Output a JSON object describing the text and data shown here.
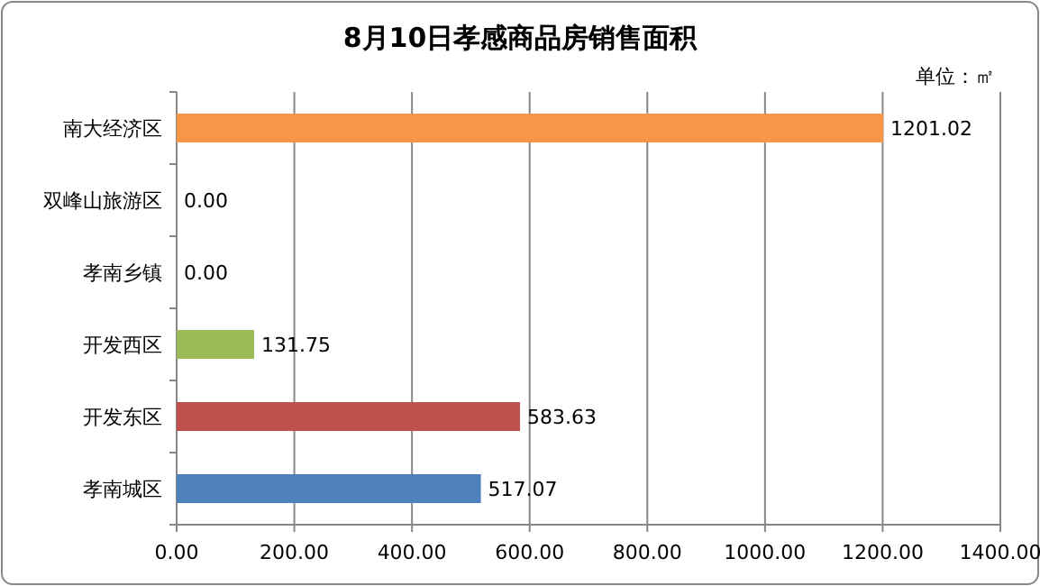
{
  "chart_data": {
    "type": "bar",
    "orientation": "horizontal",
    "title": "8月10日孝感商品房销售面积",
    "annotations": [
      "单位：㎡"
    ],
    "categories": [
      "南大经济区",
      "双峰山旅游区",
      "孝南乡镇",
      "开发西区",
      "开发东区",
      "孝南城区"
    ],
    "values": [
      1201.02,
      0,
      0,
      131.75,
      583.63,
      517.07
    ],
    "colors": [
      "#f79646",
      "#f79646",
      "#f79646",
      "#9bbb59",
      "#c0504d",
      "#4f81bd"
    ],
    "value_labels": [
      "1201.02",
      "0.00",
      "0.00",
      "131.75",
      "583.63",
      "517.07"
    ],
    "xlim": [
      0,
      1400
    ],
    "xticks": [
      {
        "value": 0,
        "label": "0.00"
      },
      {
        "value": 200,
        "label": "200.00"
      },
      {
        "value": 400,
        "label": "400.00"
      },
      {
        "value": 600,
        "label": "600.00"
      },
      {
        "value": 800,
        "label": "800.00"
      },
      {
        "value": 1000,
        "label": "1000.00"
      },
      {
        "value": 1200,
        "label": "1200.00"
      },
      {
        "value": 1400,
        "label": "1400.00"
      }
    ],
    "grid": "x"
  }
}
